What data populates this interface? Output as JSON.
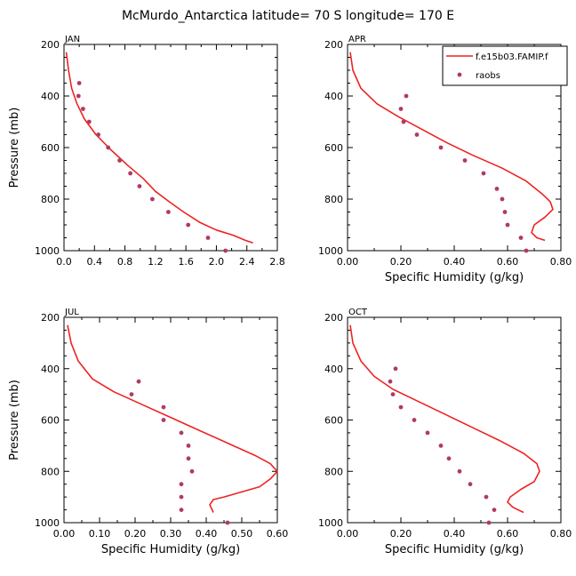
{
  "title": "McMurdo_Antarctica  latitude= 70 S longitude= 170 E",
  "colors": {
    "model": "#ee2222",
    "obs": "#b03a63",
    "axis": "#000000"
  },
  "legend": {
    "model_label": "f.e15b03.FAMIP.f",
    "obs_label": "raobs",
    "placement": "top-right of APR panel"
  },
  "chart_data": [
    {
      "type": "scatter",
      "panel": "JAN",
      "xlabel": "",
      "ylabel": "Pressure (mb)",
      "xlim": [
        0,
        2.8
      ],
      "ylim": [
        1000,
        200
      ],
      "xticks": [
        "0.0",
        "0.4",
        "0.8",
        "1.2",
        "1.6",
        "2.0",
        "2.4",
        "2.8"
      ],
      "yticks": [
        "200",
        "400",
        "600",
        "800",
        "1000"
      ],
      "series": [
        {
          "name": "f.e15b03.FAMIP.f",
          "style": "line",
          "x": [
            0.03,
            0.06,
            0.1,
            0.17,
            0.27,
            0.42,
            0.62,
            0.84,
            1.04,
            1.2,
            1.38,
            1.57,
            1.78,
            2.0,
            2.22,
            2.38,
            2.48
          ],
          "y": [
            230,
            300,
            370,
            430,
            490,
            550,
            610,
            670,
            720,
            770,
            810,
            850,
            890,
            920,
            940,
            960,
            970
          ]
        },
        {
          "name": "raobs",
          "style": "points",
          "x": [
            0.2,
            0.19,
            0.25,
            0.33,
            0.45,
            0.58,
            0.73,
            0.87,
            0.99,
            1.16,
            1.37,
            1.63,
            1.89,
            2.12
          ],
          "y": [
            350,
            400,
            450,
            500,
            550,
            600,
            650,
            700,
            750,
            800,
            850,
            900,
            950,
            1000
          ]
        }
      ]
    },
    {
      "type": "scatter",
      "panel": "APR",
      "xlabel": "Specific Humidity (g/kg)",
      "ylabel": "",
      "xlim": [
        0,
        0.8
      ],
      "ylim": [
        1000,
        200
      ],
      "xticks": [
        "0.00",
        "0.20",
        "0.40",
        "0.60",
        "0.80"
      ],
      "yticks": [
        "200",
        "400",
        "600",
        "800",
        "1000"
      ],
      "series": [
        {
          "name": "f.e15b03.FAMIP.f",
          "style": "line",
          "x": [
            0.01,
            0.02,
            0.05,
            0.11,
            0.19,
            0.28,
            0.37,
            0.47,
            0.58,
            0.67,
            0.73,
            0.76,
            0.77,
            0.74,
            0.7,
            0.69,
            0.71,
            0.74
          ],
          "y": [
            230,
            300,
            370,
            430,
            480,
            530,
            580,
            630,
            680,
            730,
            780,
            810,
            840,
            870,
            900,
            930,
            950,
            960
          ]
        },
        {
          "name": "raobs",
          "style": "points",
          "x": [
            0.22,
            0.2,
            0.21,
            0.26,
            0.35,
            0.44,
            0.51,
            0.56,
            0.58,
            0.59,
            0.6,
            0.65,
            0.67
          ],
          "y": [
            400,
            450,
            500,
            550,
            600,
            650,
            700,
            760,
            800,
            850,
            900,
            950,
            1000
          ]
        }
      ]
    },
    {
      "type": "scatter",
      "panel": "JUL",
      "xlabel": "Specific Humidity (g/kg)",
      "ylabel": "Pressure (mb)",
      "xlim": [
        0,
        0.6
      ],
      "ylim": [
        1000,
        200
      ],
      "xticks": [
        "0.00",
        "0.10",
        "0.20",
        "0.30",
        "0.40",
        "0.50",
        "0.60"
      ],
      "yticks": [
        "200",
        "400",
        "600",
        "800",
        "1000"
      ],
      "series": [
        {
          "name": "f.e15b03.FAMIP.f",
          "style": "line",
          "x": [
            0.01,
            0.02,
            0.04,
            0.08,
            0.14,
            0.22,
            0.3,
            0.38,
            0.46,
            0.54,
            0.58,
            0.6,
            0.58,
            0.55,
            0.5,
            0.45,
            0.42,
            0.41,
            0.42
          ],
          "y": [
            230,
            300,
            370,
            440,
            490,
            540,
            590,
            640,
            690,
            740,
            770,
            800,
            830,
            860,
            880,
            900,
            910,
            930,
            960
          ]
        },
        {
          "name": "raobs",
          "style": "points",
          "x": [
            0.21,
            0.19,
            0.28,
            0.28,
            0.33,
            0.35,
            0.35,
            0.36,
            0.33,
            0.33,
            0.33,
            0.46
          ],
          "y": [
            450,
            500,
            550,
            600,
            650,
            700,
            750,
            800,
            850,
            900,
            950,
            1000
          ]
        }
      ]
    },
    {
      "type": "scatter",
      "panel": "OCT",
      "xlabel": "Specific Humidity (g/kg)",
      "ylabel": "",
      "xlim": [
        0,
        0.8
      ],
      "ylim": [
        1000,
        200
      ],
      "xticks": [
        "0.00",
        "0.20",
        "0.40",
        "0.60",
        "0.80"
      ],
      "yticks": [
        "200",
        "400",
        "600",
        "800",
        "1000"
      ],
      "series": [
        {
          "name": "f.e15b03.FAMIP.f",
          "style": "line",
          "x": [
            0.01,
            0.02,
            0.05,
            0.1,
            0.17,
            0.27,
            0.37,
            0.47,
            0.57,
            0.66,
            0.71,
            0.72,
            0.7,
            0.65,
            0.61,
            0.6,
            0.62,
            0.66
          ],
          "y": [
            230,
            300,
            370,
            430,
            480,
            530,
            580,
            630,
            680,
            730,
            770,
            800,
            840,
            870,
            900,
            920,
            940,
            960
          ]
        },
        {
          "name": "raobs",
          "style": "points",
          "x": [
            0.18,
            0.16,
            0.17,
            0.2,
            0.25,
            0.3,
            0.35,
            0.38,
            0.42,
            0.46,
            0.52,
            0.55,
            0.53
          ],
          "y": [
            400,
            450,
            500,
            550,
            600,
            650,
            700,
            750,
            800,
            850,
            900,
            950,
            1000
          ]
        }
      ]
    }
  ]
}
